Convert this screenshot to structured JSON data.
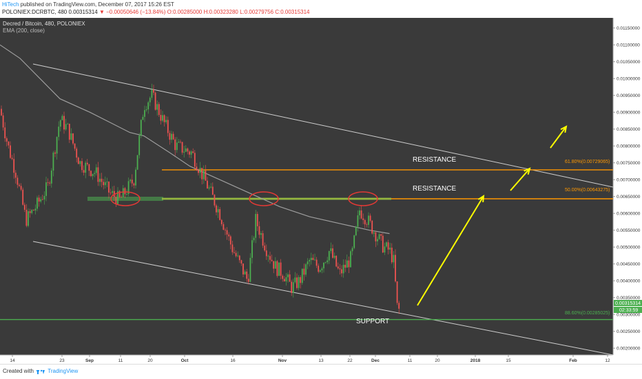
{
  "header": {
    "author": "HiTech",
    "published_text": "published on TradingView.com, December 07, 2017 15:26 EST",
    "symbol_line": "POLONIEX:DCRBTC, 480",
    "last_price": "0.00315314",
    "change_text": "▼ −0.00050646 (−13.84%)",
    "ohlc_text": "O:0.00285000 H:0.00323280 L:0.00279756 C:0.00315314"
  },
  "legend": {
    "series_name": "Decred / Bitcoin, 480, POLONIEX",
    "indicator": "EMA (200, close)"
  },
  "annotations": {
    "resistance_upper": "RESISTANCE",
    "resistance_lower": "RESISTANCE",
    "support": "SUPPORT",
    "fib_618": "61.80%(0.00729065)",
    "fib_500": "50.00%(0.00643275)",
    "fib_886": "88.60%(0.00285025)"
  },
  "price_tags": {
    "last": "0.00315314",
    "countdown": "02:33:59"
  },
  "footer": {
    "created_with": "Created with",
    "brand": "TradingView"
  },
  "colors": {
    "background": "#3a3a3a",
    "up_candle": "#4caf50",
    "down_candle": "#ef5350",
    "ema": "#9e9e9e",
    "fib": "#ff9800",
    "support": "#4caf50",
    "channel": "#cfcfcf",
    "arrow": "#ffff00",
    "ellipse": "#e53935"
  },
  "chart_data": {
    "type": "candlestick",
    "x_ticks": [
      "14",
      "23",
      "Sep",
      "11",
      "20",
      "Oct",
      "16",
      "Nov",
      "13",
      "22",
      "Dec",
      "11",
      "20",
      "2018",
      "15",
      "Feb",
      "12"
    ],
    "y_ticks": [
      "0.01150000",
      "0.01100000",
      "0.01050000",
      "0.01000000",
      "0.00950000",
      "0.00900000",
      "0.00850000",
      "0.00800000",
      "0.00750000",
      "0.00700000",
      "0.00650000",
      "0.00600000",
      "0.00550000",
      "0.00500000",
      "0.00450000",
      "0.00400000",
      "0.00350000",
      "0.00300000",
      "0.00250000",
      "0.00200000"
    ],
    "ylim": [
      0.0018,
      0.0118
    ],
    "price_path": [
      [
        0.0091,
        0
      ],
      [
        0.008,
        4
      ],
      [
        0.0072,
        8
      ],
      [
        0.0058,
        13
      ],
      [
        0.0062,
        18
      ],
      [
        0.0068,
        24
      ],
      [
        0.0088,
        30
      ],
      [
        0.0085,
        34
      ],
      [
        0.0075,
        40
      ],
      [
        0.0072,
        48
      ],
      [
        0.0066,
        55
      ],
      [
        0.0064,
        60
      ],
      [
        0.007,
        67
      ],
      [
        0.0092,
        72
      ],
      [
        0.0095,
        76
      ],
      [
        0.0087,
        82
      ],
      [
        0.008,
        88
      ],
      [
        0.0078,
        96
      ],
      [
        0.0068,
        104
      ],
      [
        0.006,
        110
      ],
      [
        0.005,
        116
      ],
      [
        0.0045,
        120
      ],
      [
        0.004,
        124
      ],
      [
        0.0058,
        128
      ],
      [
        0.005,
        133
      ],
      [
        0.0044,
        138
      ],
      [
        0.0042,
        142
      ],
      [
        0.0038,
        146
      ],
      [
        0.004,
        150
      ],
      [
        0.0046,
        155
      ],
      [
        0.0044,
        160
      ],
      [
        0.0049,
        165
      ],
      [
        0.0042,
        170
      ],
      [
        0.0047,
        176
      ],
      [
        0.0061,
        180
      ],
      [
        0.0058,
        184
      ],
      [
        0.0054,
        188
      ],
      [
        0.005,
        192
      ],
      [
        0.0049,
        195
      ],
      [
        0.0046,
        197
      ],
      [
        0.0031,
        199
      ],
      [
        0.00315,
        200
      ]
    ],
    "ema200_path": [
      [
        0.011,
        0
      ],
      [
        0.0106,
        10
      ],
      [
        0.01,
        20
      ],
      [
        0.0094,
        30
      ],
      [
        0.009,
        45
      ],
      [
        0.0087,
        55
      ],
      [
        0.0084,
        65
      ],
      [
        0.0083,
        72
      ],
      [
        0.0078,
        85
      ],
      [
        0.0074,
        95
      ],
      [
        0.007,
        110
      ],
      [
        0.0066,
        125
      ],
      [
        0.0062,
        140
      ],
      [
        0.0059,
        155
      ],
      [
        0.0057,
        170
      ],
      [
        0.0055,
        185
      ],
      [
        0.0054,
        195
      ]
    ],
    "fib_levels": [
      {
        "label": "61.80%",
        "value": 0.00729065
      },
      {
        "label": "50.00%",
        "value": 0.00643275
      },
      {
        "label": "88.60%",
        "value": 0.00285025
      }
    ],
    "last_price": 0.00315314
  }
}
